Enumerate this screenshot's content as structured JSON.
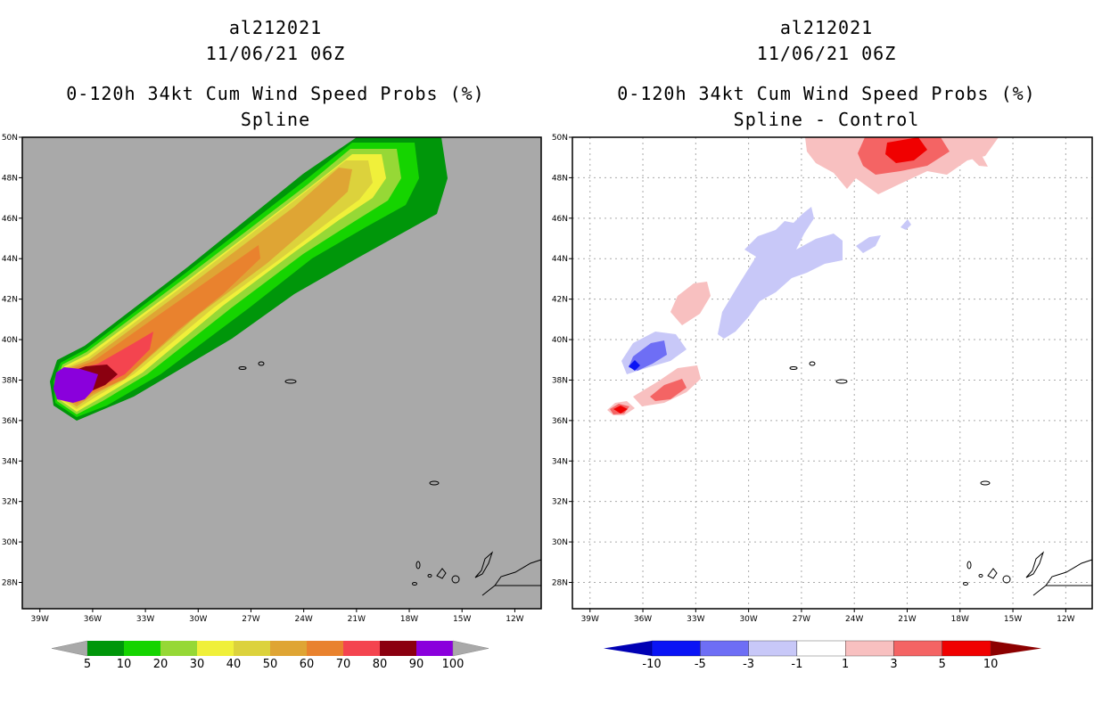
{
  "chart_data": [
    {
      "type": "heatmap",
      "storm_id": "al212021",
      "datetime": "11/06/21 06Z",
      "title": "0-120h 34kt Cum Wind Speed Probs (%)",
      "subtitle": "Spline",
      "x_ticks": [
        "39W",
        "36W",
        "33W",
        "30W",
        "27W",
        "24W",
        "21W",
        "18W",
        "15W",
        "12W"
      ],
      "y_ticks": [
        "50N",
        "48N",
        "46N",
        "44N",
        "42N",
        "40N",
        "38N",
        "36N",
        "34N",
        "32N",
        "30N",
        "28N"
      ],
      "xlim": [
        -40.0,
        -10.5
      ],
      "ylim": [
        26.7,
        50.0
      ],
      "grid": false,
      "background": "#a9a9a9",
      "colorbar": {
        "labels": [
          "5",
          "10",
          "20",
          "30",
          "40",
          "50",
          "60",
          "70",
          "80",
          "90",
          "100"
        ],
        "colors": [
          "#00960a",
          "#15d400",
          "#96d836",
          "#f0f03a",
          "#dcd23c",
          "#dfa534",
          "#e9822e",
          "#f4444f",
          "#8b0010",
          "#8a00dc"
        ]
      }
    },
    {
      "type": "heatmap",
      "storm_id": "al212021",
      "datetime": "11/06/21 06Z",
      "title": "0-120h 34kt Cum Wind Speed Probs (%)",
      "subtitle": "Spline - Control",
      "x_ticks": [
        "39W",
        "36W",
        "33W",
        "30W",
        "27W",
        "24W",
        "21W",
        "18W",
        "15W",
        "12W"
      ],
      "y_ticks": [
        "50N",
        "48N",
        "46N",
        "44N",
        "42N",
        "40N",
        "38N",
        "36N",
        "34N",
        "32N",
        "30N",
        "28N"
      ],
      "xlim": [
        -40.0,
        -10.5
      ],
      "ylim": [
        26.7,
        50.0
      ],
      "grid": true,
      "background": "#ffffff",
      "colorbar": {
        "labels": [
          "-10",
          "-5",
          "-3",
          "-1",
          "1",
          "3",
          "5",
          "10"
        ],
        "colors": [
          "#0000b4",
          "#0a14f5",
          "#6e6ef5",
          "#c8c8f8",
          "#ffffff",
          "#f8c0c0",
          "#f46464",
          "#f00000",
          "#8c0000"
        ]
      }
    }
  ]
}
